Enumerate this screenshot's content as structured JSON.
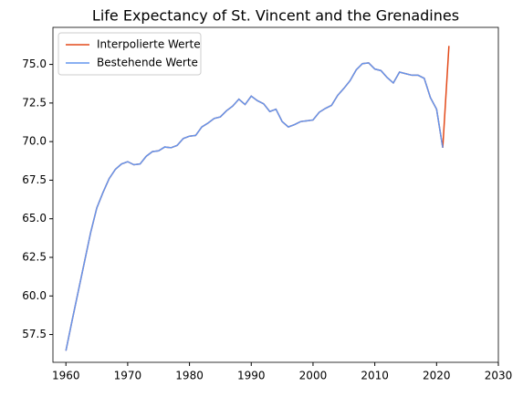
{
  "chart_data": {
    "type": "line",
    "title": "Life Expectancy of St. Vincent and the Grenadines",
    "x": [
      1960,
      1961,
      1962,
      1963,
      1964,
      1965,
      1966,
      1967,
      1968,
      1969,
      1970,
      1971,
      1972,
      1973,
      1974,
      1975,
      1976,
      1977,
      1978,
      1979,
      1980,
      1981,
      1982,
      1983,
      1984,
      1985,
      1986,
      1987,
      1988,
      1989,
      1990,
      1991,
      1992,
      1993,
      1994,
      1995,
      1996,
      1997,
      1998,
      1999,
      2000,
      2001,
      2002,
      2003,
      2004,
      2005,
      2006,
      2007,
      2008,
      2009,
      2010,
      2011,
      2012,
      2013,
      2014,
      2015,
      2016,
      2017,
      2018,
      2019,
      2020,
      2021,
      2022
    ],
    "series": [
      {
        "name": "Interpolierte Werte",
        "color": "#e34a1a",
        "values": [
          56.45,
          58.4,
          60.3,
          62.2,
          64.1,
          65.7,
          66.7,
          67.6,
          68.2,
          68.55,
          68.7,
          68.5,
          68.55,
          69.05,
          69.35,
          69.4,
          69.65,
          69.6,
          69.75,
          70.2,
          70.35,
          70.4,
          70.95,
          71.2,
          71.5,
          71.6,
          72.0,
          72.3,
          72.75,
          72.4,
          72.95,
          72.65,
          72.45,
          71.95,
          72.1,
          71.3,
          70.95,
          71.1,
          71.3,
          71.35,
          71.4,
          71.9,
          72.15,
          72.35,
          73.0,
          73.45,
          73.95,
          74.65,
          75.05,
          75.1,
          74.7,
          74.6,
          74.15,
          73.8,
          74.5,
          74.4,
          74.3,
          74.3,
          74.1,
          72.85,
          72.1,
          69.6,
          76.2
        ]
      },
      {
        "name": "Bestehende Werte",
        "color": "#6495ed",
        "values": [
          56.45,
          58.4,
          60.3,
          62.2,
          64.1,
          65.7,
          66.7,
          67.6,
          68.2,
          68.55,
          68.7,
          68.5,
          68.55,
          69.05,
          69.35,
          69.4,
          69.65,
          69.6,
          69.75,
          70.2,
          70.35,
          70.4,
          70.95,
          71.2,
          71.5,
          71.6,
          72.0,
          72.3,
          72.75,
          72.4,
          72.95,
          72.65,
          72.45,
          71.95,
          72.1,
          71.3,
          70.95,
          71.1,
          71.3,
          71.35,
          71.4,
          71.9,
          72.15,
          72.35,
          73.0,
          73.45,
          73.95,
          74.65,
          75.05,
          75.1,
          74.7,
          74.6,
          74.15,
          73.8,
          74.5,
          74.4,
          74.3,
          74.3,
          74.1,
          72.85,
          72.1,
          69.6,
          null
        ]
      }
    ],
    "xlim": [
      1957.9,
      2030
    ],
    "xticks": [
      1960,
      1970,
      1980,
      1990,
      2000,
      2010,
      2020,
      2030
    ],
    "ylim": [
      55.7,
      77.4
    ],
    "yticks": [
      57.5,
      {
        "value": 60,
        "label": "60.0"
      },
      62.5,
      {
        "value": 65,
        "label": "65.0"
      },
      67.5,
      {
        "value": 70,
        "label": "70.0"
      },
      72.5,
      {
        "value": 75,
        "label": "75.0"
      }
    ],
    "legend": "upper left"
  }
}
